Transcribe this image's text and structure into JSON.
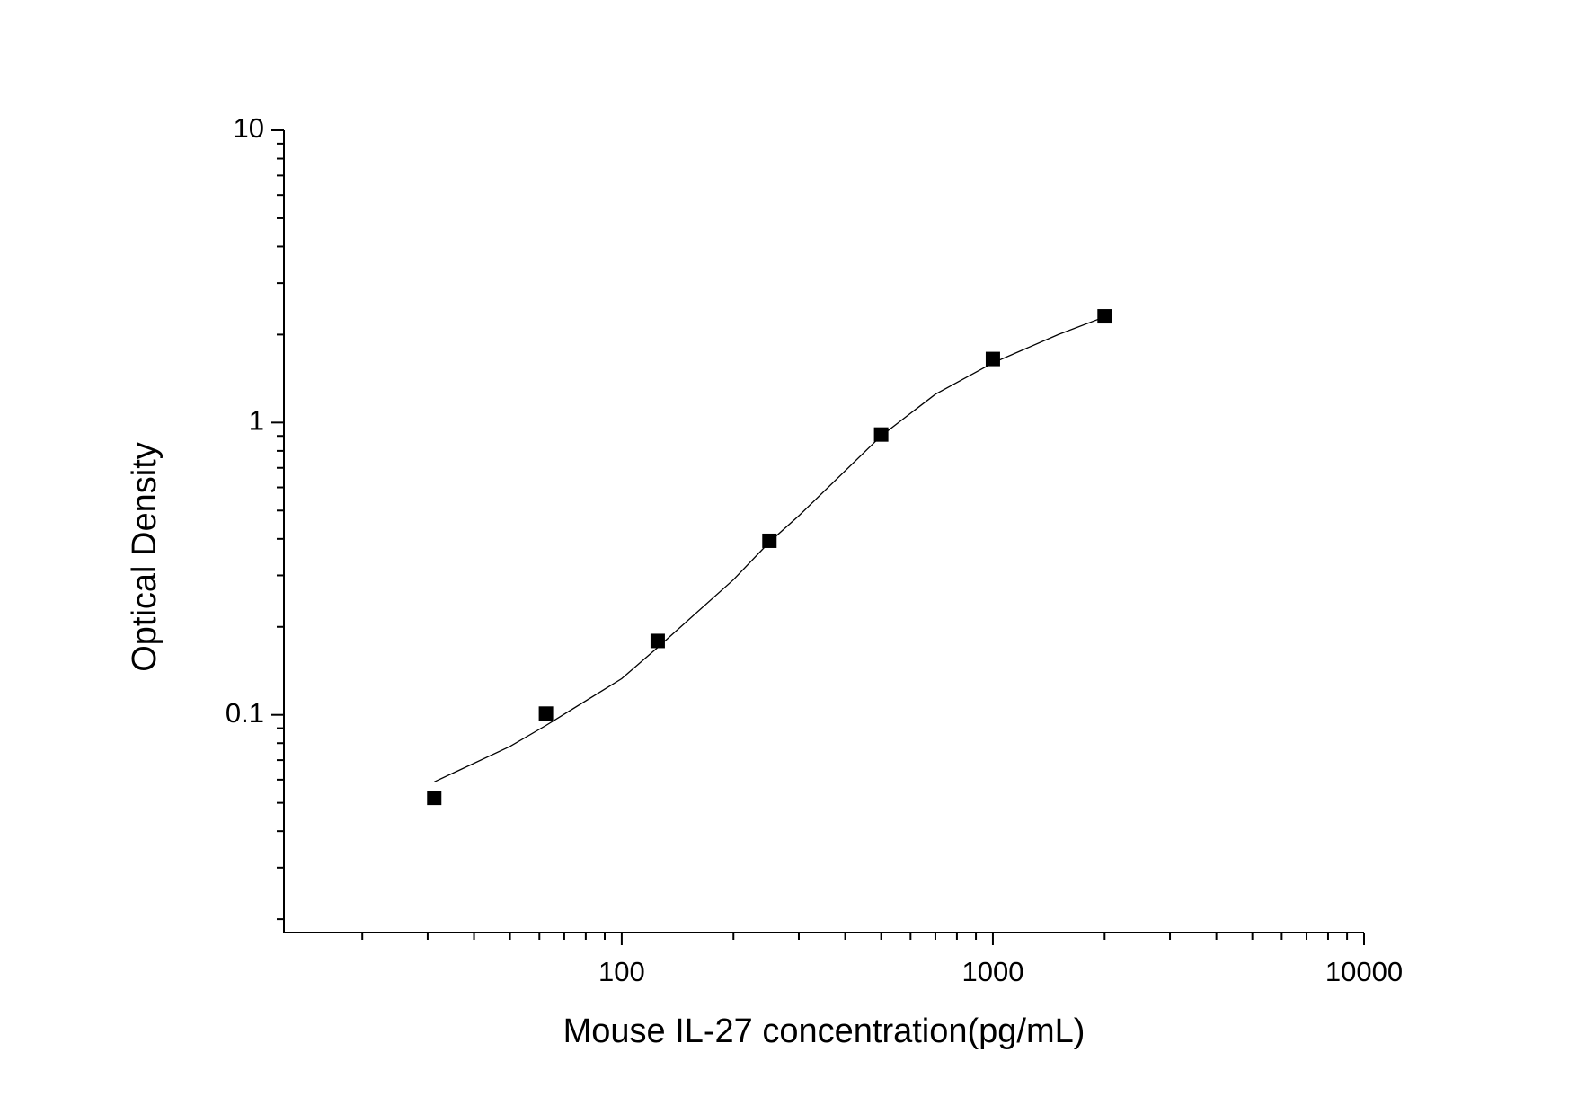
{
  "chart_data": {
    "type": "scatter",
    "x_label": "Mouse IL-27 concentration(pg/mL)",
    "y_label": "Optical Density",
    "xscale": "log",
    "yscale": "log",
    "xlim": [
      12.3,
      10000
    ],
    "ylim": [
      0.018,
      10
    ],
    "xticks": [
      100,
      1000,
      10000
    ],
    "yticks": [
      0.1,
      1,
      10
    ],
    "xminorticks": [
      20,
      30,
      40,
      50,
      60,
      70,
      80,
      90,
      200,
      300,
      400,
      500,
      600,
      700,
      800,
      900,
      2000,
      3000,
      4000,
      5000,
      6000,
      7000,
      8000,
      9000
    ],
    "yminorticks": [
      0.02,
      0.03,
      0.04,
      0.05,
      0.06,
      0.07,
      0.08,
      0.09,
      0.2,
      0.3,
      0.4,
      0.5,
      0.6,
      0.7,
      0.8,
      0.9,
      2,
      3,
      4,
      5,
      6,
      7,
      8,
      9
    ],
    "series": [
      {
        "kind": "points",
        "color": "#000000",
        "x": [
          31.25,
          62.5,
          125,
          250,
          500,
          1000,
          2000
        ],
        "values": [
          0.052,
          0.101,
          0.179,
          0.394,
          0.91,
          1.65,
          2.31
        ]
      },
      {
        "kind": "curve",
        "color": "#000000",
        "x": [
          31.25,
          50,
          62.5,
          100,
          125,
          200,
          250,
          300,
          500,
          700,
          1000,
          1500,
          2000
        ],
        "values": [
          0.059,
          0.078,
          0.092,
          0.133,
          0.17,
          0.29,
          0.39,
          0.48,
          0.9,
          1.25,
          1.6,
          2.0,
          2.3
        ]
      }
    ]
  }
}
